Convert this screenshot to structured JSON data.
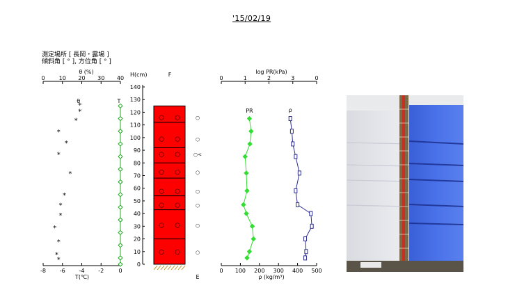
{
  "header": {
    "date": "'15/02/19",
    "site_label": "測定場所 [ 長岡・露場 ]",
    "slope_label": "傾斜角 [ ° ], 方位角 [ ° ]"
  },
  "colors": {
    "temperature": "#22aa22",
    "pr": "#33dd33",
    "density": "#2b2b8c",
    "layer_fill": "#ff0000",
    "ground_hatch": "#c8a040"
  },
  "chart_data": [
    {
      "type": "scatter",
      "xlabel_top": "θ (%)",
      "xlabel_bottom": "T(℃)",
      "ylabel": "H(cm)",
      "top_ticks": [
        "0",
        "10",
        "20",
        "30",
        "40"
      ],
      "bottom_ticks": [
        "-8",
        "-6",
        "-4",
        "-2",
        "0"
      ],
      "y_ticks": [
        "0",
        "10",
        "20",
        "30",
        "40",
        "50",
        "60",
        "70",
        "80",
        "90",
        "100",
        "110",
        "120",
        "130",
        "140"
      ],
      "xlim_theta": [
        0,
        40
      ],
      "xlim_T": [
        -8,
        0
      ],
      "ylim": [
        0,
        140
      ],
      "series": [
        {
          "name": "θ",
          "marker": "*",
          "points": [
            {
              "x": 19,
              "y": 126
            },
            {
              "x": 19,
              "y": 121
            },
            {
              "x": 17,
              "y": 114
            },
            {
              "x": 8,
              "y": 105
            },
            {
              "x": 12,
              "y": 96
            },
            {
              "x": 8,
              "y": 87
            },
            {
              "x": 14,
              "y": 72
            },
            {
              "x": 11,
              "y": 55
            },
            {
              "x": 9,
              "y": 47
            },
            {
              "x": 9,
              "y": 39
            },
            {
              "x": 6,
              "y": 29
            },
            {
              "x": 8,
              "y": 18
            },
            {
              "x": 7,
              "y": 8
            },
            {
              "x": 8,
              "y": 4
            }
          ]
        },
        {
          "name": "T",
          "marker": "diamond",
          "points": [
            {
              "x": 0,
              "y": 125
            },
            {
              "x": 0,
              "y": 115
            },
            {
              "x": 0,
              "y": 105
            },
            {
              "x": 0,
              "y": 95
            },
            {
              "x": 0,
              "y": 85
            },
            {
              "x": 0,
              "y": 75
            },
            {
              "x": 0,
              "y": 65
            },
            {
              "x": 0,
              "y": 55
            },
            {
              "x": 0,
              "y": 45
            },
            {
              "x": 0,
              "y": 35
            },
            {
              "x": 0,
              "y": 25
            },
            {
              "x": 0,
              "y": 15
            },
            {
              "x": 0,
              "y": 5
            },
            {
              "x": 0,
              "y": 0
            }
          ]
        }
      ]
    },
    {
      "type": "table",
      "title": "F",
      "top_height": 125,
      "boundaries": [
        112,
        92,
        80,
        68,
        54,
        43,
        20
      ],
      "layer_symbols": [
        {
          "y": 116,
          "grains": [
            "○",
            "○"
          ],
          "side": "○"
        },
        {
          "y": 99,
          "grains": [
            "○",
            "○"
          ],
          "side": "○"
        },
        {
          "y": 87,
          "grains": [
            "○",
            "○"
          ],
          "side": "○<"
        },
        {
          "y": 73,
          "grains": [
            "○",
            "○"
          ],
          "side": "○"
        },
        {
          "y": 58,
          "grains": [
            "○",
            "○"
          ],
          "side": "○"
        },
        {
          "y": 47,
          "grains": [
            "○",
            "○"
          ],
          "side": "○"
        },
        {
          "y": 31,
          "grains": [
            "○",
            "○"
          ],
          "side": "○"
        },
        {
          "y": 10,
          "grains": [
            "○",
            "○"
          ],
          "side": "○"
        }
      ],
      "bottom_label": "E"
    },
    {
      "type": "line",
      "xlabel_top": "log PR(kPa)",
      "xlabel_bottom": "ρ (kg/m³)",
      "top_ticks": [
        "0",
        "1",
        "2",
        "3",
        "0"
      ],
      "bottom_ticks": [
        "0",
        "100",
        "200",
        "300",
        "400",
        "500"
      ],
      "xlim_logPR": [
        0,
        4
      ],
      "xlim_rho": [
        0,
        500
      ],
      "ylim": [
        0,
        140
      ],
      "series": [
        {
          "name": "PR",
          "marker": "diamond",
          "points": [
            {
              "x": 1.18,
              "y": 115
            },
            {
              "x": 1.25,
              "y": 105
            },
            {
              "x": 1.2,
              "y": 95
            },
            {
              "x": 1.0,
              "y": 85
            },
            {
              "x": 1.05,
              "y": 72
            },
            {
              "x": 1.08,
              "y": 58
            },
            {
              "x": 0.93,
              "y": 47
            },
            {
              "x": 1.05,
              "y": 40
            },
            {
              "x": 1.3,
              "y": 30
            },
            {
              "x": 1.35,
              "y": 20
            },
            {
              "x": 1.18,
              "y": 10
            },
            {
              "x": 1.08,
              "y": 5
            }
          ]
        },
        {
          "name": "ρ",
          "marker": "square",
          "points": [
            {
              "x": 362,
              "y": 115
            },
            {
              "x": 370,
              "y": 105
            },
            {
              "x": 375,
              "y": 95
            },
            {
              "x": 390,
              "y": 85
            },
            {
              "x": 410,
              "y": 72
            },
            {
              "x": 390,
              "y": 58
            },
            {
              "x": 400,
              "y": 47
            },
            {
              "x": 470,
              "y": 40
            },
            {
              "x": 475,
              "y": 30
            },
            {
              "x": 440,
              "y": 20
            },
            {
              "x": 445,
              "y": 10
            },
            {
              "x": 440,
              "y": 5
            }
          ]
        }
      ]
    }
  ]
}
